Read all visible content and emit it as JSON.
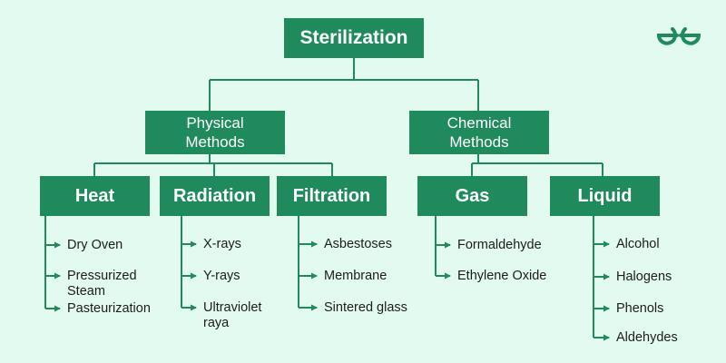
{
  "root": "Sterilization",
  "branches": {
    "physical": {
      "title": "Physical Methods",
      "categories": {
        "heat": {
          "title": "Heat",
          "items": [
            "Dry Oven",
            "Pressurized Steam",
            "Pasteurization"
          ]
        },
        "radiation": {
          "title": "Radiation",
          "items": [
            "X-rays",
            "Y-rays",
            "Ultraviolet raya"
          ]
        },
        "filtration": {
          "title": "Filtration",
          "items": [
            "Asbestoses",
            "Membrane",
            "Sintered glass"
          ]
        }
      }
    },
    "chemical": {
      "title": "Chemical Methods",
      "categories": {
        "gas": {
          "title": "Gas",
          "items": [
            "Formaldehyde",
            "Ethylene Oxide"
          ]
        },
        "liquid": {
          "title": "Liquid",
          "items": [
            "Alcohol",
            "Halogens",
            "Phenols",
            "Aldehydes"
          ]
        }
      }
    }
  },
  "colors": {
    "background": "#e3faf1",
    "box": "#1f8a5b",
    "line": "#1f8a5b",
    "text": "#1c1c1c"
  },
  "logo_icon": "gfg-logo-icon"
}
